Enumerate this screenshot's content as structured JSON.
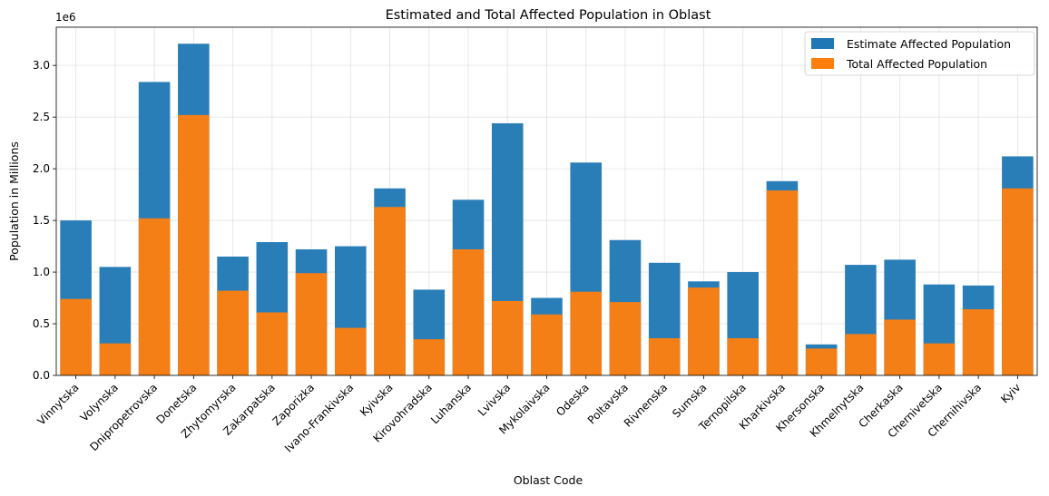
{
  "chart_data": {
    "type": "bar",
    "title": "Estimated and Total Affected Population in Oblast",
    "xlabel": "Oblast Code",
    "ylabel": "Population in Millions",
    "offset_label": "1e6",
    "ylim": [
      0,
      3.37
    ],
    "yticks": [
      0.0,
      0.5,
      1.0,
      1.5,
      2.0,
      2.5,
      3.0
    ],
    "ytick_labels": [
      "0.0",
      "0.5",
      "1.0",
      "1.5",
      "2.0",
      "2.5",
      "3.0"
    ],
    "grid": true,
    "legend_position": "top-right",
    "categories": [
      "Vinnytska",
      "Volynska",
      "Dnipropetrovska",
      "Donetska",
      "Zhytomyrska",
      "Zakarpatska",
      "Zaporizka",
      "Ivano-Frankivska",
      "Kyivska",
      "Kirovohradska",
      "Luhanska",
      "Lvivska",
      "Mykolaivska",
      "Odeska",
      "Poltavska",
      "Rivnenska",
      "Sumska",
      "Ternopilska",
      "Kharkivska",
      "Khersonska",
      "Khmelnytska",
      "Cherkaska",
      "Chernivetska",
      "Chernihivska",
      "Kyiv"
    ],
    "series": [
      {
        "name": "Estimate Affected Population",
        "color": "#1f77b4",
        "values": [
          1.5,
          1.05,
          2.84,
          3.21,
          1.15,
          1.29,
          1.22,
          1.25,
          1.81,
          0.83,
          1.7,
          2.44,
          0.75,
          2.06,
          1.31,
          1.09,
          0.91,
          1.0,
          1.88,
          0.3,
          1.07,
          1.12,
          0.88,
          0.87,
          2.12
        ]
      },
      {
        "name": "Total Affected Population",
        "color": "#ff7f0e",
        "values": [
          0.74,
          0.31,
          1.52,
          2.52,
          0.82,
          0.61,
          0.99,
          0.46,
          1.63,
          0.35,
          1.22,
          0.72,
          0.59,
          0.81,
          0.71,
          0.36,
          0.85,
          0.36,
          1.79,
          0.26,
          0.4,
          0.54,
          0.31,
          0.64,
          1.81
        ]
      }
    ]
  }
}
